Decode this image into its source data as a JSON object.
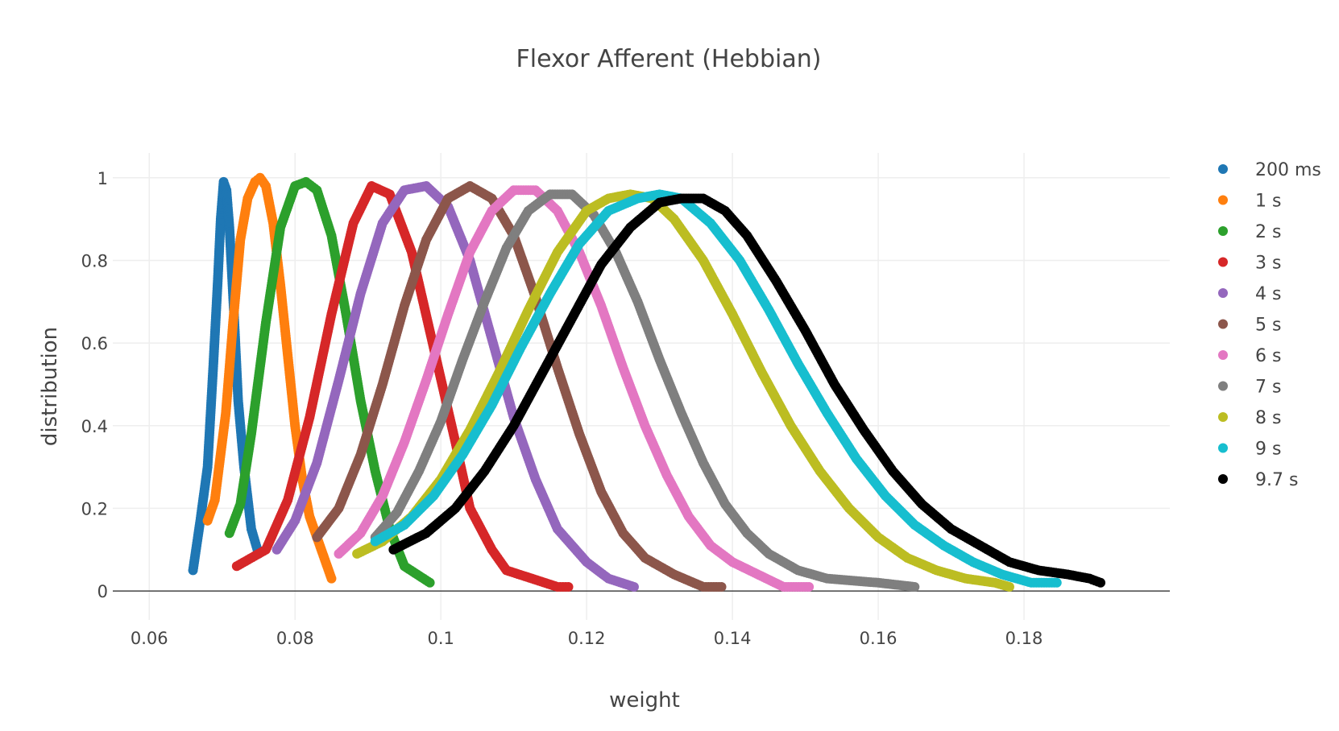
{
  "chart_data": {
    "type": "scatter",
    "title": "Flexor Afferent (Hebbian)",
    "xlabel": "weight",
    "ylabel": "distribution",
    "xlim": [
      0.055,
      0.2
    ],
    "ylim": [
      -0.07,
      1.06
    ],
    "x_ticks": [
      0.06,
      0.08,
      0.1,
      0.12,
      0.14,
      0.16,
      0.18
    ],
    "x_tick_labels": [
      "0.06",
      "0.08",
      "0.1",
      "0.12",
      "0.14",
      "0.16",
      "0.18"
    ],
    "y_ticks": [
      0,
      0.2,
      0.4,
      0.6,
      0.8,
      1
    ],
    "y_tick_labels": [
      "0",
      "0.2",
      "0.4",
      "0.6",
      "0.8",
      "1"
    ],
    "grid": true,
    "legend_position": "right",
    "series": [
      {
        "name": "200 ms",
        "color": "#1f77b4",
        "x": [
          0.066,
          0.067,
          0.068,
          0.0688,
          0.0694,
          0.0698,
          0.0702,
          0.0706,
          0.071,
          0.0716,
          0.0722,
          0.073,
          0.074,
          0.075
        ],
        "y": [
          0.05,
          0.17,
          0.3,
          0.55,
          0.75,
          0.9,
          0.99,
          0.97,
          0.88,
          0.68,
          0.46,
          0.3,
          0.15,
          0.09
        ]
      },
      {
        "name": "1 s",
        "color": "#ff7f0e",
        "x": [
          0.068,
          0.069,
          0.0705,
          0.0715,
          0.0725,
          0.0735,
          0.0745,
          0.0752,
          0.076,
          0.077,
          0.078,
          0.079,
          0.08,
          0.081,
          0.082,
          0.085
        ],
        "y": [
          0.17,
          0.22,
          0.43,
          0.65,
          0.85,
          0.95,
          0.99,
          1.0,
          0.98,
          0.89,
          0.74,
          0.57,
          0.4,
          0.27,
          0.18,
          0.03
        ]
      },
      {
        "name": "2 s",
        "color": "#2ca02c",
        "x": [
          0.071,
          0.0725,
          0.074,
          0.076,
          0.078,
          0.08,
          0.0815,
          0.083,
          0.085,
          0.087,
          0.089,
          0.091,
          0.093,
          0.095,
          0.0985
        ],
        "y": [
          0.14,
          0.21,
          0.38,
          0.65,
          0.88,
          0.98,
          0.99,
          0.97,
          0.86,
          0.67,
          0.46,
          0.29,
          0.15,
          0.06,
          0.02
        ]
      },
      {
        "name": "3 s",
        "color": "#d62728",
        "x": [
          0.072,
          0.076,
          0.079,
          0.082,
          0.085,
          0.088,
          0.0905,
          0.093,
          0.096,
          0.099,
          0.102,
          0.104,
          0.107,
          0.109,
          0.116,
          0.1175
        ],
        "y": [
          0.06,
          0.1,
          0.22,
          0.42,
          0.67,
          0.89,
          0.98,
          0.96,
          0.82,
          0.59,
          0.36,
          0.2,
          0.1,
          0.05,
          0.01,
          0.01
        ]
      },
      {
        "name": "4 s",
        "color": "#9467bd",
        "x": [
          0.0775,
          0.08,
          0.083,
          0.086,
          0.089,
          0.092,
          0.095,
          0.098,
          0.101,
          0.104,
          0.107,
          0.11,
          0.113,
          0.116,
          0.12,
          0.123,
          0.1265
        ],
        "y": [
          0.1,
          0.17,
          0.31,
          0.51,
          0.72,
          0.89,
          0.97,
          0.98,
          0.93,
          0.8,
          0.61,
          0.42,
          0.27,
          0.15,
          0.07,
          0.03,
          0.01
        ]
      },
      {
        "name": "5 s",
        "color": "#8c564b",
        "x": [
          0.083,
          0.086,
          0.089,
          0.092,
          0.095,
          0.098,
          0.101,
          0.104,
          0.107,
          0.11,
          0.113,
          0.116,
          0.119,
          0.122,
          0.125,
          0.128,
          0.132,
          0.136,
          0.1385
        ],
        "y": [
          0.13,
          0.2,
          0.33,
          0.5,
          0.69,
          0.85,
          0.95,
          0.98,
          0.95,
          0.86,
          0.71,
          0.54,
          0.38,
          0.24,
          0.14,
          0.08,
          0.04,
          0.01,
          0.01
        ]
      },
      {
        "name": "6 s",
        "color": "#e377c2",
        "x": [
          0.086,
          0.089,
          0.092,
          0.095,
          0.098,
          0.101,
          0.104,
          0.107,
          0.11,
          0.113,
          0.116,
          0.119,
          0.122,
          0.125,
          0.128,
          0.131,
          0.134,
          0.137,
          0.14,
          0.147,
          0.1505
        ],
        "y": [
          0.09,
          0.14,
          0.23,
          0.36,
          0.51,
          0.67,
          0.82,
          0.92,
          0.97,
          0.97,
          0.92,
          0.82,
          0.69,
          0.54,
          0.4,
          0.28,
          0.18,
          0.11,
          0.07,
          0.01,
          0.01
        ]
      },
      {
        "name": "7 s",
        "color": "#7f7f7f",
        "x": [
          0.091,
          0.094,
          0.097,
          0.1,
          0.103,
          0.106,
          0.109,
          0.112,
          0.115,
          0.118,
          0.121,
          0.124,
          0.127,
          0.13,
          0.133,
          0.136,
          0.139,
          0.142,
          0.145,
          0.149,
          0.153,
          0.16,
          0.165
        ],
        "y": [
          0.13,
          0.19,
          0.29,
          0.41,
          0.56,
          0.7,
          0.83,
          0.92,
          0.96,
          0.96,
          0.91,
          0.82,
          0.7,
          0.56,
          0.43,
          0.31,
          0.21,
          0.14,
          0.09,
          0.05,
          0.03,
          0.02,
          0.01
        ]
      },
      {
        "name": "8 s",
        "color": "#bcbd22",
        "x": [
          0.0885,
          0.092,
          0.096,
          0.1,
          0.104,
          0.108,
          0.112,
          0.116,
          0.12,
          0.123,
          0.126,
          0.129,
          0.132,
          0.136,
          0.14,
          0.144,
          0.148,
          0.152,
          0.156,
          0.16,
          0.164,
          0.168,
          0.172,
          0.176,
          0.178
        ],
        "y": [
          0.09,
          0.12,
          0.18,
          0.27,
          0.39,
          0.53,
          0.68,
          0.82,
          0.92,
          0.95,
          0.96,
          0.95,
          0.9,
          0.8,
          0.67,
          0.53,
          0.4,
          0.29,
          0.2,
          0.13,
          0.08,
          0.05,
          0.03,
          0.02,
          0.01
        ]
      },
      {
        "name": "9 s",
        "color": "#17becf",
        "x": [
          0.091,
          0.095,
          0.099,
          0.103,
          0.107,
          0.111,
          0.115,
          0.119,
          0.123,
          0.127,
          0.13,
          0.133,
          0.137,
          0.141,
          0.145,
          0.149,
          0.153,
          0.157,
          0.161,
          0.165,
          0.169,
          0.173,
          0.177,
          0.181,
          0.1845
        ],
        "y": [
          0.12,
          0.16,
          0.23,
          0.33,
          0.45,
          0.59,
          0.72,
          0.84,
          0.92,
          0.95,
          0.96,
          0.95,
          0.89,
          0.8,
          0.68,
          0.55,
          0.43,
          0.32,
          0.23,
          0.16,
          0.11,
          0.07,
          0.04,
          0.02,
          0.02
        ]
      },
      {
        "name": "9.7 s",
        "color": "#000000",
        "x": [
          0.0935,
          0.098,
          0.102,
          0.106,
          0.11,
          0.114,
          0.118,
          0.122,
          0.126,
          0.13,
          0.133,
          0.136,
          0.139,
          0.142,
          0.146,
          0.15,
          0.154,
          0.158,
          0.162,
          0.166,
          0.17,
          0.174,
          0.178,
          0.182,
          0.186,
          0.189,
          0.1905
        ],
        "y": [
          0.1,
          0.14,
          0.2,
          0.29,
          0.4,
          0.53,
          0.66,
          0.79,
          0.88,
          0.94,
          0.95,
          0.95,
          0.92,
          0.86,
          0.75,
          0.63,
          0.5,
          0.39,
          0.29,
          0.21,
          0.15,
          0.11,
          0.07,
          0.05,
          0.04,
          0.03,
          0.02
        ]
      }
    ]
  }
}
